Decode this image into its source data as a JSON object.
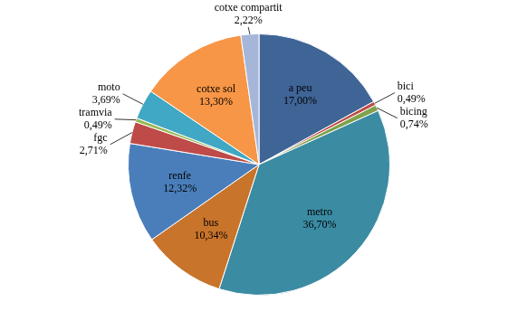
{
  "chart_data": {
    "type": "pie",
    "categories": [
      "a peu",
      "bici",
      "bicing",
      "metro",
      "bus",
      "renfe",
      "fgc",
      "tramvia",
      "moto",
      "cotxe sol",
      "cotxe compartit"
    ],
    "values": [
      17.0,
      0.49,
      0.74,
      36.7,
      10.34,
      12.32,
      2.71,
      0.49,
      3.69,
      13.3,
      2.22
    ],
    "value_labels": [
      "17,00%",
      "0,49%",
      "0,74%",
      "36,70%",
      "10,34%",
      "12,32%",
      "2,71%",
      "0,49%",
      "3,69%",
      "13,30%",
      "2,22%"
    ],
    "colors": [
      "#3f6496",
      "#be4b48",
      "#7fa24a",
      "#3b8ba3",
      "#c8742b",
      "#4a7ebb",
      "#be4b48",
      "#98b954",
      "#40a8c4",
      "#f79646",
      "#a5b6d9"
    ],
    "data_labels": true
  }
}
